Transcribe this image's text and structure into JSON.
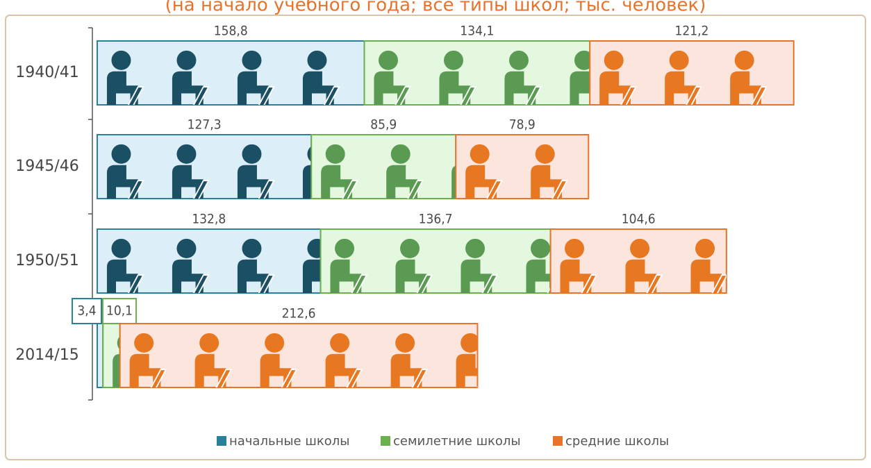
{
  "chart_data": {
    "type": "bar",
    "orientation": "horizontal",
    "stacked": true,
    "subtitle": "(на начало учебного года; все типы школ; тыс. человек)",
    "categories": [
      "1940/41",
      "1945/46",
      "1950/51",
      "2014/15"
    ],
    "xlim": [
      0,
      420
    ],
    "series": [
      {
        "name": "начальные школы",
        "color": "#2a7f9a",
        "values": [
          158.8,
          127.3,
          132.8,
          3.4
        ],
        "value_labels": [
          "158,8",
          "127,3",
          "132,8",
          "3,4"
        ]
      },
      {
        "name": "семилетние школы",
        "color": "#6ab04c",
        "values": [
          134.1,
          85.9,
          136.7,
          10.1
        ],
        "value_labels": [
          "134,1",
          "85,9",
          "136,7",
          "10,1"
        ]
      },
      {
        "name": "средние школы",
        "color": "#e8732a",
        "values": [
          121.2,
          78.9,
          104.6,
          212.6
        ],
        "value_labels": [
          "121,2",
          "78,9",
          "104,6",
          "212,6"
        ]
      }
    ]
  }
}
